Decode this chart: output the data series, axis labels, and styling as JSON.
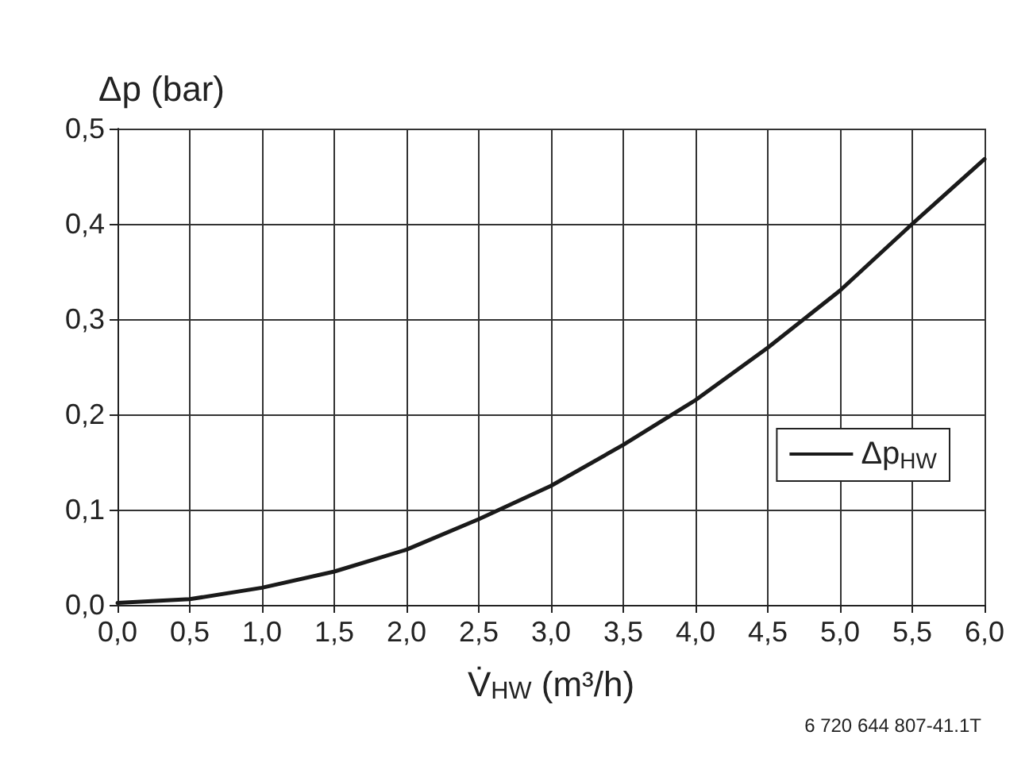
{
  "chart_data": {
    "type": "line",
    "ylabel": "Δp (bar)",
    "xlabel": "V̇$_{HW}$ (m³/h)",
    "x": [
      0,
      0.5,
      1,
      1.5,
      2,
      2.5,
      3,
      3.5,
      4,
      4.5,
      5,
      5.5,
      6
    ],
    "series": [
      {
        "name": "Δp$_{HW}$",
        "color": "#1a1a1a",
        "values": [
          0.002,
          0.006,
          0.018,
          0.035,
          0.058,
          0.09,
          0.125,
          0.168,
          0.215,
          0.27,
          0.33,
          0.4,
          0.468
        ]
      }
    ],
    "xlim": [
      0,
      6
    ],
    "xticks": [
      {
        "value": 0,
        "label": "0,0"
      },
      {
        "value": 0.5,
        "label": "0,5"
      },
      {
        "value": 1,
        "label": "1,0"
      },
      {
        "value": 1.5,
        "label": "1,5"
      },
      {
        "value": 2,
        "label": "2,0"
      },
      {
        "value": 2.5,
        "label": "2,5"
      },
      {
        "value": 3,
        "label": "3,0"
      },
      {
        "value": 3.5,
        "label": "3,5"
      },
      {
        "value": 4,
        "label": "4,0"
      },
      {
        "value": 4.5,
        "label": "4,5"
      },
      {
        "value": 5,
        "label": "5,0"
      },
      {
        "value": 5.5,
        "label": "5,5"
      },
      {
        "value": 6,
        "label": "6,0"
      }
    ],
    "ylim": [
      0,
      0.5
    ],
    "yticks": [
      {
        "value": 0,
        "label": "0,0"
      },
      {
        "value": 0.1,
        "label": "0,1"
      },
      {
        "value": 0.2,
        "label": "0,2"
      },
      {
        "value": 0.3,
        "label": "0,3"
      },
      {
        "value": 0.4,
        "label": "0,4"
      },
      {
        "value": 0.5,
        "label": "0,5"
      }
    ],
    "grid": true,
    "legend": "right",
    "marker": "none",
    "line_style": "solid",
    "annotations": [
      "6 720 644 807-41.1T"
    ]
  }
}
